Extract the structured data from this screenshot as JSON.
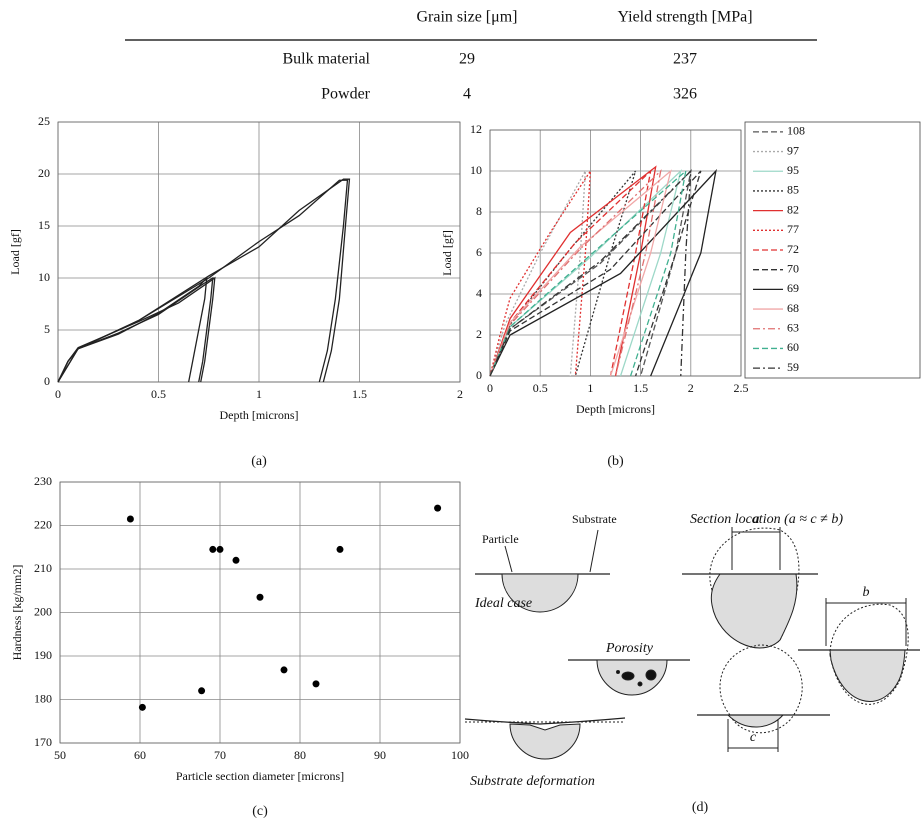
{
  "table": {
    "columns": [
      "Grain size [μm]",
      "Yield strength [MPa]"
    ],
    "rows": [
      {
        "label": "Bulk material",
        "values": [
          29,
          237
        ]
      },
      {
        "label": "Powder",
        "values": [
          4,
          326
        ]
      }
    ]
  },
  "chart_data": [
    {
      "type": "line",
      "caption": "(a)",
      "xlabel": "Depth [microns]",
      "ylabel": "Load [gf]",
      "xlim": [
        0,
        2
      ],
      "xticks": [
        0,
        0.5,
        1,
        1.5,
        2
      ],
      "ylim": [
        0,
        25
      ],
      "yticks": [
        0,
        5,
        10,
        15,
        20,
        25
      ],
      "grid": true,
      "series": [
        {
          "color": "#222222",
          "x": [
            0,
            0.05,
            0.1,
            0.3,
            0.5,
            0.7,
            0.74,
            0.73,
            0.7,
            0.67,
            0.65
          ],
          "values": [
            0,
            2,
            3.2,
            4.6,
            6.6,
            9.2,
            10,
            8,
            5,
            2,
            0
          ]
        },
        {
          "color": "#222222",
          "x": [
            0,
            0.05,
            0.1,
            0.3,
            0.5,
            0.72,
            0.77,
            0.76,
            0.74,
            0.72,
            0.7
          ],
          "values": [
            0,
            2,
            3.2,
            4.7,
            6.5,
            9.4,
            10,
            8,
            5,
            2,
            0
          ]
        },
        {
          "color": "#222222",
          "x": [
            0,
            0.05,
            0.1,
            0.4,
            0.6,
            0.75,
            0.78,
            0.77,
            0.75,
            0.73,
            0.71
          ],
          "values": [
            0,
            2,
            3.3,
            5.8,
            7.6,
            9.6,
            10,
            8,
            5,
            2,
            0
          ]
        },
        {
          "color": "#222222",
          "x": [
            0,
            0.1,
            0.4,
            0.75,
            1.0,
            1.2,
            1.4,
            1.44,
            1.42,
            1.38,
            1.34,
            1.3
          ],
          "values": [
            0,
            3.2,
            5.9,
            10,
            13.5,
            16,
            19.4,
            19.4,
            15,
            8,
            3,
            0
          ]
        },
        {
          "color": "#222222",
          "x": [
            0,
            0.1,
            0.4,
            0.75,
            1.0,
            1.2,
            1.42,
            1.45,
            1.43,
            1.4,
            1.36,
            1.32
          ],
          "values": [
            0,
            3.2,
            5.9,
            10.2,
            13,
            16.5,
            19.5,
            19.5,
            15,
            8,
            3,
            0
          ]
        }
      ]
    },
    {
      "type": "line",
      "caption": "(b)",
      "xlabel": "Depth [microns]",
      "ylabel": "Load [gf]",
      "xlim": [
        0,
        2.5
      ],
      "xticks": [
        0,
        0.5,
        1,
        1.5,
        2,
        2.5
      ],
      "ylim": [
        0,
        12
      ],
      "yticks": [
        0,
        2,
        4,
        6,
        8,
        10,
        12
      ],
      "grid": true,
      "legend": "right",
      "series": [
        {
          "name": "108",
          "color": "#555555",
          "dash": "dashed",
          "x": [
            0,
            0.2,
            1.1,
            2.0,
            1.85,
            1.5
          ],
          "values": [
            0,
            2.3,
            5.5,
            10,
            6,
            0
          ]
        },
        {
          "name": "97",
          "color": "#aaaaaa",
          "dash": "dotted",
          "x": [
            0,
            0.15,
            0.5,
            0.95,
            0.9,
            0.8
          ],
          "values": [
            0,
            2.5,
            6,
            10,
            6,
            0
          ]
        },
        {
          "name": "95",
          "color": "#9dd8c8",
          "dash": "solid",
          "x": [
            0,
            0.2,
            1.0,
            1.9,
            1.7,
            1.3
          ],
          "values": [
            0,
            2.4,
            5.8,
            10,
            6,
            0
          ]
        },
        {
          "name": "85",
          "color": "#333333",
          "dash": "dotted",
          "x": [
            0,
            0.2,
            0.8,
            1.45,
            1.2,
            0.85
          ],
          "values": [
            0,
            2.5,
            6.2,
            10,
            6,
            0
          ]
        },
        {
          "name": "82",
          "color": "#e03030",
          "dash": "solid",
          "x": [
            0,
            0.2,
            0.8,
            1.65,
            1.5,
            1.25
          ],
          "values": [
            0,
            2.8,
            7,
            10.2,
            6,
            0
          ]
        },
        {
          "name": "77",
          "color": "#e03030",
          "dash": "dotted",
          "x": [
            0,
            0.1,
            0.2,
            0.6,
            1.0,
            0.95,
            0.85
          ],
          "values": [
            0,
            2,
            3.8,
            7,
            10,
            6,
            0
          ]
        },
        {
          "name": "72",
          "color": "#e03030",
          "dash": "dashed",
          "x": [
            0,
            0.2,
            0.85,
            1.6,
            1.45,
            1.2
          ],
          "values": [
            0,
            2.6,
            6.5,
            10,
            6,
            0
          ]
        },
        {
          "name": "70",
          "color": "#333333",
          "dash": "dashed",
          "x": [
            0,
            0.2,
            1.2,
            2.1,
            1.85,
            1.45
          ],
          "values": [
            0,
            2.2,
            5.2,
            10,
            6,
            0
          ]
        },
        {
          "name": "69",
          "color": "#222222",
          "dash": "solid",
          "x": [
            0,
            0.2,
            1.3,
            2.25,
            2.1,
            1.6
          ],
          "values": [
            0,
            2,
            5,
            10,
            6,
            0
          ]
        },
        {
          "name": "68",
          "color": "#f0a8a8",
          "dash": "solid",
          "x": [
            0,
            0.2,
            0.9,
            1.8,
            1.6,
            1.2
          ],
          "values": [
            0,
            2.6,
            6.3,
            10,
            6,
            0
          ]
        },
        {
          "name": "63",
          "color": "#e07070",
          "dash": "dashdot",
          "x": [
            0,
            0.2,
            0.9,
            1.7,
            1.55,
            1.25
          ],
          "values": [
            0,
            2.5,
            6.2,
            10,
            6,
            0
          ]
        },
        {
          "name": "60",
          "color": "#40b090",
          "dash": "dashed",
          "x": [
            0,
            0.2,
            1.0,
            1.95,
            1.8,
            1.4
          ],
          "values": [
            0,
            2.4,
            5.9,
            10,
            6,
            0
          ]
        },
        {
          "name": "59",
          "color": "#333333",
          "dash": "dashdot",
          "x": [
            0,
            0.2,
            1.1,
            2.0,
            1.95,
            1.9
          ],
          "values": [
            0,
            2.3,
            5.6,
            10,
            6,
            0
          ]
        }
      ]
    },
    {
      "type": "scatter",
      "caption": "(c)",
      "xlabel": "Particle section diameter [microns]",
      "ylabel": "Hardness [kg/mm2]",
      "xlim": [
        50,
        100
      ],
      "xticks": [
        50,
        60,
        70,
        80,
        90,
        100
      ],
      "ylim": [
        170,
        230
      ],
      "yticks": [
        170,
        180,
        190,
        200,
        210,
        220,
        230
      ],
      "grid": true,
      "color": "#000000",
      "x": [
        58.8,
        60.3,
        67.7,
        69.1,
        70,
        72,
        75,
        78,
        82,
        85,
        97.2
      ],
      "values": [
        221.5,
        178.2,
        182,
        214.5,
        214.5,
        212,
        203.5,
        186.8,
        183.6,
        214.5,
        224
      ]
    }
  ],
  "diagram": {
    "caption": "(d)",
    "particle": "Particle",
    "substrate": "Substrate",
    "ideal": "Ideal case",
    "porosity": "Porosity",
    "deformation": "Substrate deformation",
    "section": "Section location (a ≈ c ≠ b)",
    "a": "a",
    "b": "b",
    "c": "c"
  }
}
